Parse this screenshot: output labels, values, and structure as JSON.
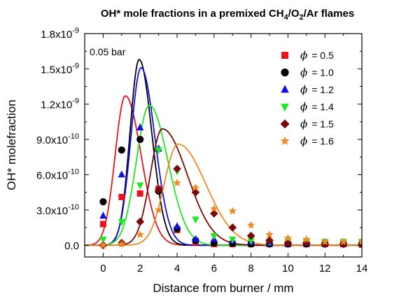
{
  "chart_data": {
    "type": "scatter",
    "title": {
      "pre": "OH* mole fractions in a premixed CH",
      "sub1": "4",
      "mid1": "/O",
      "sub2": "2",
      "post": "/Ar flames"
    },
    "xlabel": "Distance from burner / mm",
    "ylabel": "OH* molefraction",
    "annotation": "0.05 bar",
    "xlim": [
      -1,
      14
    ],
    "ylim": [
      -1e-10,
      1.8e-09
    ],
    "x_ticks": [
      {
        "value": 0,
        "label": "0"
      },
      {
        "value": 2,
        "label": "2"
      },
      {
        "value": 4,
        "label": "4"
      },
      {
        "value": 6,
        "label": "6"
      },
      {
        "value": 8,
        "label": "8"
      },
      {
        "value": 10,
        "label": "10"
      },
      {
        "value": 12,
        "label": "12"
      },
      {
        "value": 14,
        "label": "14"
      }
    ],
    "y_ticks": [
      {
        "value": 0,
        "base": "0.0",
        "exp": ""
      },
      {
        "value": 3e-10,
        "base": "3.0x10",
        "exp": "-10"
      },
      {
        "value": 6e-10,
        "base": "6.0x10",
        "exp": "-10"
      },
      {
        "value": 9e-10,
        "base": "9.0x10",
        "exp": "-10"
      },
      {
        "value": 1.2e-09,
        "base": "1.2x10",
        "exp": "-9"
      },
      {
        "value": 1.5e-09,
        "base": "1.5x10",
        "exp": "-9"
      },
      {
        "value": 1.8e-09,
        "base": "1.8x10",
        "exp": "-9"
      }
    ],
    "legend_placement": "top-right",
    "grid": false,
    "series": [
      {
        "phi_value": "= 0.5",
        "marker": "square",
        "color": "#e8131b",
        "points": [
          [
            0,
            1.8e-10
          ],
          [
            1,
            4.1e-10
          ],
          [
            2,
            4.4e-10
          ],
          [
            3,
            4.8e-10
          ],
          [
            4,
            1.3e-10
          ],
          [
            5,
            2.5e-11
          ],
          [
            6,
            1e-11
          ],
          [
            7,
            1e-11
          ],
          [
            8,
            1e-11
          ],
          [
            9,
            1e-11
          ],
          [
            10,
            1e-11
          ],
          [
            11,
            1e-11
          ],
          [
            12,
            1e-11
          ],
          [
            13,
            1e-11
          ],
          [
            14,
            5e-12
          ]
        ],
        "curve": {
          "peak_x": 1.2,
          "peak_y": 1.27e-09,
          "sigma_left": 0.55,
          "sigma_right": 0.85
        }
      },
      {
        "phi_value": "= 1.0",
        "marker": "circle",
        "color": "#000000",
        "points": [
          [
            0,
            3.7e-10
          ],
          [
            1,
            8.1e-10
          ],
          [
            2,
            9e-10
          ],
          [
            3,
            4.6e-10
          ],
          [
            4,
            1.4e-10
          ],
          [
            5,
            4e-11
          ],
          [
            6,
            2e-11
          ],
          [
            7,
            1.5e-11
          ],
          [
            8,
            1e-11
          ],
          [
            9,
            1e-11
          ],
          [
            10,
            1e-11
          ],
          [
            11,
            1e-11
          ],
          [
            12,
            1e-11
          ],
          [
            13,
            1e-11
          ],
          [
            14,
            1e-11
          ]
        ],
        "curve": {
          "peak_x": 1.95,
          "peak_y": 1.58e-09,
          "sigma_left": 0.5,
          "sigma_right": 0.68
        }
      },
      {
        "phi_value": "= 1.2",
        "marker": "triangle-up",
        "color": "#1010e0",
        "points": [
          [
            0,
            2.5e-10
          ],
          [
            1,
            6e-10
          ],
          [
            2,
            1e-09
          ],
          [
            3,
            8.2e-10
          ],
          [
            4,
            1.6e-10
          ],
          [
            5,
            5e-11
          ],
          [
            6,
            5e-11
          ],
          [
            7,
            4e-11
          ],
          [
            8,
            3e-11
          ],
          [
            9,
            2e-11
          ],
          [
            10,
            2e-11
          ],
          [
            11,
            2e-11
          ],
          [
            12,
            2e-11
          ],
          [
            13,
            2e-11
          ],
          [
            14,
            3e-11
          ]
        ],
        "curve": {
          "peak_x": 2.05,
          "peak_y": 1.51e-09,
          "sigma_left": 0.55,
          "sigma_right": 0.75
        }
      },
      {
        "phi_value": "= 1.4",
        "marker": "triangle-down",
        "color": "#1ee81e",
        "points": [
          [
            0,
            5e-11
          ],
          [
            1,
            2e-10
          ],
          [
            2,
            5.1e-10
          ],
          [
            3,
            8.1e-10
          ],
          [
            4,
            6.3e-10
          ],
          [
            5,
            2.2e-10
          ],
          [
            6,
            8e-11
          ],
          [
            7,
            5e-11
          ],
          [
            8,
            4e-11
          ],
          [
            9,
            3e-11
          ],
          [
            10,
            3e-11
          ],
          [
            11,
            3e-11
          ],
          [
            12,
            3e-11
          ],
          [
            13,
            3e-11
          ],
          [
            14,
            3e-11
          ]
        ],
        "curve": {
          "peak_x": 2.5,
          "peak_y": 1.19e-09,
          "sigma_left": 0.7,
          "sigma_right": 1.0
        }
      },
      {
        "phi_value": "= 1.5",
        "marker": "diamond",
        "color": "#7a0a0a",
        "points": [
          [
            0,
            0
          ],
          [
            1,
            2e-11
          ],
          [
            2,
            2e-10
          ],
          [
            3,
            4.7e-10
          ],
          [
            4,
            6.5e-10
          ],
          [
            5,
            4.5e-10
          ],
          [
            6,
            2.7e-10
          ],
          [
            7,
            1.5e-10
          ],
          [
            8,
            8e-11
          ],
          [
            9,
            4e-11
          ],
          [
            10,
            2e-11
          ],
          [
            11,
            2e-11
          ],
          [
            12,
            1e-11
          ],
          [
            13,
            1e-11
          ],
          [
            14,
            1e-11
          ]
        ],
        "curve": {
          "peak_x": 3.2,
          "peak_y": 9.9e-10,
          "sigma_left": 0.65,
          "sigma_right": 1.35
        }
      },
      {
        "phi_value": "= 1.6",
        "marker": "star",
        "color": "#f08a24",
        "points": [
          [
            0,
            0
          ],
          [
            1,
            1e-11
          ],
          [
            2,
            9e-11
          ],
          [
            3,
            3e-10
          ],
          [
            4,
            5.3e-10
          ],
          [
            5,
            4.9e-10
          ],
          [
            6,
            3.1e-10
          ],
          [
            7,
            2.9e-10
          ],
          [
            8,
            1.7e-10
          ],
          [
            9,
            9e-11
          ],
          [
            10,
            6e-11
          ],
          [
            11,
            5e-11
          ],
          [
            12,
            3e-11
          ],
          [
            13,
            3e-11
          ],
          [
            14,
            3e-11
          ]
        ],
        "curve": {
          "peak_x": 4.05,
          "peak_y": 8.6e-10,
          "sigma_left": 0.75,
          "sigma_right": 1.5
        }
      }
    ]
  }
}
